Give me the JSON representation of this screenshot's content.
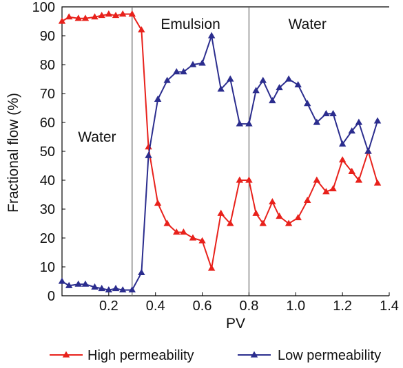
{
  "chart_data": {
    "type": "line",
    "xlabel": "PV",
    "ylabel": "Fractional flow (%)",
    "xlim": [
      0,
      1.4
    ],
    "ylim": [
      0,
      100
    ],
    "xticks": [
      0.2,
      0.4,
      0.6,
      0.8,
      1.0,
      1.2,
      1.4
    ],
    "xtick_labels": [
      "0.2",
      "0.4",
      "0.6",
      "0.8",
      "1.0",
      "1.2",
      "1.4"
    ],
    "yticks": [
      0,
      10,
      20,
      30,
      40,
      50,
      60,
      70,
      80,
      90,
      100
    ],
    "ytick_labels": [
      "0",
      "10",
      "20",
      "30",
      "40",
      "50",
      "60",
      "70",
      "80",
      "90",
      "100"
    ],
    "grid": false,
    "legend_position": "bottom",
    "dividers": [
      0.3,
      0.8
    ],
    "region_labels": [
      {
        "text": "Water",
        "x": 0.15,
        "y": 55
      },
      {
        "text": "Emulsion",
        "x": 0.55,
        "y": 94
      },
      {
        "text": "Water",
        "x": 1.05,
        "y": 94
      }
    ],
    "series": [
      {
        "name": "High permeability",
        "color": "#e8211b",
        "x": [
          0.0,
          0.03,
          0.07,
          0.1,
          0.14,
          0.17,
          0.2,
          0.23,
          0.26,
          0.3,
          0.34,
          0.37,
          0.41,
          0.45,
          0.49,
          0.52,
          0.56,
          0.6,
          0.64,
          0.68,
          0.72,
          0.76,
          0.8,
          0.83,
          0.86,
          0.9,
          0.93,
          0.97,
          1.01,
          1.05,
          1.09,
          1.13,
          1.16,
          1.2,
          1.24,
          1.27,
          1.31,
          1.35
        ],
        "values": [
          95,
          96.5,
          96,
          96,
          96.5,
          97,
          97.5,
          97,
          97.5,
          97.5,
          92,
          51.5,
          32,
          25,
          22,
          22,
          20,
          19,
          9.5,
          28.5,
          25,
          40,
          40,
          28.5,
          25,
          32.5,
          27.5,
          25,
          27,
          33,
          40,
          36,
          37,
          47,
          43,
          40,
          50,
          39
        ]
      },
      {
        "name": "Low permeability",
        "color": "#2b2d8e",
        "x": [
          0.0,
          0.03,
          0.07,
          0.1,
          0.14,
          0.17,
          0.2,
          0.23,
          0.26,
          0.3,
          0.34,
          0.37,
          0.41,
          0.45,
          0.49,
          0.52,
          0.56,
          0.6,
          0.64,
          0.68,
          0.72,
          0.76,
          0.8,
          0.83,
          0.86,
          0.9,
          0.93,
          0.97,
          1.01,
          1.05,
          1.09,
          1.13,
          1.16,
          1.2,
          1.24,
          1.27,
          1.31,
          1.35
        ],
        "values": [
          5,
          3.5,
          4,
          4,
          3,
          2.5,
          2,
          2.5,
          2,
          2,
          8,
          48.5,
          68,
          74.5,
          77.5,
          77.5,
          80,
          80.5,
          90,
          71.5,
          75,
          59.5,
          59.5,
          71,
          74.5,
          67.5,
          72,
          75,
          73,
          66.5,
          60,
          63,
          63,
          52.5,
          57,
          60,
          50,
          60.5
        ]
      }
    ]
  }
}
